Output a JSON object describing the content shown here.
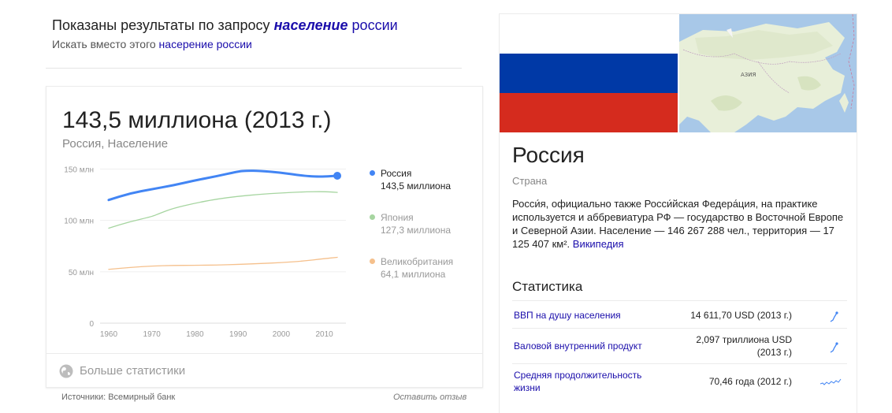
{
  "correction": {
    "prefix": "Показаны результаты по запросу ",
    "query_bold": "население",
    "query_rest": " россии",
    "instead_prefix": "Искать вместо этого ",
    "instead_link": "насерение россии"
  },
  "card": {
    "headline": "143,5 миллиона (2013 г.)",
    "subline": "Россия, Население",
    "more_stats": "Больше статистики",
    "sources": "Источники: Всемирный банк",
    "feedback": "Оставить отзыв"
  },
  "chart_data": {
    "type": "line",
    "y_ticks": [
      "150 млн",
      "100 млн",
      "50 млн",
      "0"
    ],
    "y_tick_values": [
      150,
      100,
      50,
      0
    ],
    "x_ticks": [
      "1960",
      "1970",
      "1980",
      "1990",
      "2000",
      "2010"
    ],
    "x_tick_values": [
      1960,
      1970,
      1980,
      1990,
      2000,
      2010
    ],
    "xlim": [
      1958,
      2015
    ],
    "ylim": [
      0,
      155
    ],
    "series": [
      {
        "name": "Россия",
        "value_label": "143,5 миллиона",
        "color": "#4285f4",
        "x": [
          1960,
          1965,
          1970,
          1975,
          1980,
          1985,
          1990,
          1992,
          1995,
          2000,
          2005,
          2008,
          2010,
          2013
        ],
        "values": [
          119.9,
          126.5,
          130.4,
          134.2,
          139.0,
          143.0,
          147.7,
          148.5,
          148.3,
          146.6,
          143.5,
          142.7,
          142.8,
          143.5
        ]
      },
      {
        "name": "Япония",
        "value_label": "127,3 миллиона",
        "color": "#a6d5a0",
        "x": [
          1960,
          1965,
          1970,
          1972,
          1975,
          1980,
          1985,
          1990,
          1995,
          2000,
          2005,
          2010,
          2013
        ],
        "values": [
          92.5,
          98.9,
          103.7,
          107.2,
          111.9,
          116.8,
          120.8,
          123.5,
          125.4,
          126.8,
          127.8,
          128.1,
          127.3
        ]
      },
      {
        "name": "Великобритания",
        "value_label": "64,1 миллиона",
        "color": "#f5c08c",
        "x": [
          1960,
          1965,
          1970,
          1975,
          1980,
          1985,
          1990,
          1995,
          2000,
          2005,
          2010,
          2013
        ],
        "values": [
          52.4,
          54.3,
          55.6,
          56.2,
          56.3,
          56.6,
          57.2,
          58.0,
          58.9,
          60.4,
          62.8,
          64.1
        ]
      }
    ]
  },
  "kp": {
    "title": "Россия",
    "type": "Страна",
    "description": "Росси́я, официально также Росси́йская Федера́ция, на практике используется и аббревиатура РФ — государство в Восточной Европе и Северной Азии. Население — 146 267 288 чел., территория — 17 125 407 км². ",
    "wiki_link": "Википедия",
    "map_label": "АЗИЯ",
    "flag_colors": [
      "#ffffff",
      "#0039a6",
      "#d52b1e"
    ],
    "stats_title": "Статистика",
    "stats": [
      {
        "label": "ВВП на душу населения",
        "value": "14 611,70 USD (2013 г.)"
      },
      {
        "label": "Валовой внутренний продукт",
        "value": "2,097 триллиона USD (2013 г.)"
      },
      {
        "label": "Средняя продолжительность жизни",
        "value": "70,46 года (2012 г.)"
      }
    ]
  }
}
